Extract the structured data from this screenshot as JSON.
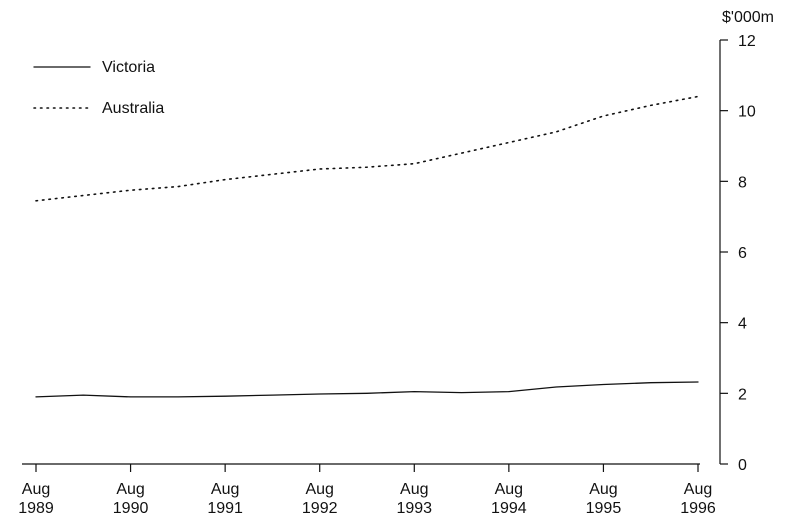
{
  "chart_data": {
    "type": "line",
    "title": "",
    "ylabel": "$'000m",
    "xlabel": "",
    "ylim": [
      0,
      12
    ],
    "yticks": [
      0,
      2,
      4,
      6,
      8,
      10,
      12
    ],
    "xlim": [
      0,
      7
    ],
    "xticks": [
      {
        "value": 0,
        "month": "Aug",
        "year": "1989"
      },
      {
        "value": 1,
        "month": "Aug",
        "year": "1990"
      },
      {
        "value": 2,
        "month": "Aug",
        "year": "1991"
      },
      {
        "value": 3,
        "month": "Aug",
        "year": "1992"
      },
      {
        "value": 4,
        "month": "Aug",
        "year": "1993"
      },
      {
        "value": 5,
        "month": "Aug",
        "year": "1994"
      },
      {
        "value": 6,
        "month": "Aug",
        "year": "1995"
      },
      {
        "value": 7,
        "month": "Aug",
        "year": "1996"
      }
    ],
    "y_axis_position": "right",
    "grid": false,
    "legend_position": "top-left",
    "series": [
      {
        "name": "Victoria",
        "style": "solid",
        "color": "#111111",
        "x": [
          0,
          0.5,
          1,
          1.5,
          2,
          2.5,
          3,
          3.5,
          4,
          4.5,
          5,
          5.5,
          6,
          6.5,
          7
        ],
        "values": [
          1.9,
          1.95,
          1.9,
          1.9,
          1.92,
          1.95,
          1.98,
          2.0,
          2.05,
          2.02,
          2.05,
          2.18,
          2.25,
          2.3,
          2.32
        ]
      },
      {
        "name": "Australia",
        "style": "dotted",
        "color": "#111111",
        "x": [
          0,
          0.5,
          1,
          1.5,
          2,
          2.5,
          3,
          3.5,
          4,
          4.5,
          5,
          5.5,
          6,
          6.5,
          7
        ],
        "values": [
          7.45,
          7.6,
          7.75,
          7.85,
          8.05,
          8.2,
          8.35,
          8.4,
          8.5,
          8.8,
          9.1,
          9.4,
          9.85,
          10.15,
          10.4
        ]
      }
    ]
  }
}
